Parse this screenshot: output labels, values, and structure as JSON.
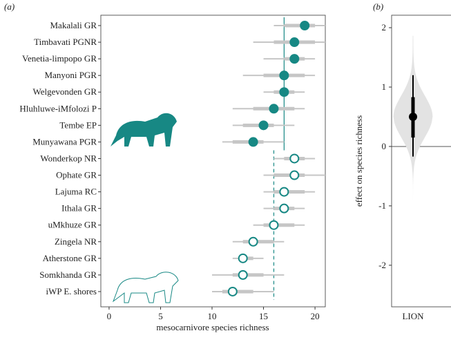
{
  "chart_data": [
    {
      "type": "forest",
      "panel_label": "(a)",
      "x_label": "mesocarnivore species richness",
      "categories": [
        "Makalali GR",
        "Timbavati PGNR",
        "Venetia-limpopo GR",
        "Manyoni PGR",
        "Welgevonden GR",
        "Hluhluwe-iMfolozi P",
        "Tembe EP",
        "Munyawana PGR",
        "Wonderkop NR",
        "Ophate GR",
        "Lajuma RC",
        "Ithala GR",
        "uMkhuze GR",
        "Zingela NR",
        "Atherstone GR",
        "Somkhanda GR",
        "iWP E. shores"
      ],
      "values": [
        19,
        18,
        18,
        17,
        17,
        16,
        15,
        14,
        18,
        18,
        17,
        17,
        16,
        14,
        13,
        13,
        12
      ],
      "intervals_50": [
        [
          17,
          20
        ],
        [
          16,
          20
        ],
        [
          17,
          19
        ],
        [
          15,
          19
        ],
        [
          16,
          18
        ],
        [
          14,
          18
        ],
        [
          13,
          16
        ],
        [
          12,
          15
        ],
        [
          17,
          19
        ],
        [
          16,
          19
        ],
        [
          16,
          19
        ],
        [
          16,
          18
        ],
        [
          15,
          18
        ],
        [
          13,
          16
        ],
        [
          13,
          14
        ],
        [
          12,
          15
        ],
        [
          11,
          14
        ]
      ],
      "intervals_95": [
        [
          16,
          21
        ],
        [
          14,
          21
        ],
        [
          15,
          20
        ],
        [
          13,
          20
        ],
        [
          15,
          19
        ],
        [
          12,
          19
        ],
        [
          12,
          18
        ],
        [
          11,
          17
        ],
        [
          16,
          20
        ],
        [
          15,
          21
        ],
        [
          15,
          20
        ],
        [
          15,
          19
        ],
        [
          14,
          19
        ],
        [
          12,
          17
        ],
        [
          12,
          15
        ],
        [
          10,
          17
        ],
        [
          10,
          16
        ]
      ],
      "groups": [
        {
          "start": 0,
          "end": 7,
          "filled": true,
          "mean": 17,
          "dashed": false
        },
        {
          "start": 8,
          "end": 16,
          "filled": false,
          "mean": 16,
          "dashed": true
        }
      ],
      "color": "#178884",
      "interval_color": "#c6c6c6",
      "xlim": [
        -0.8,
        21.0
      ],
      "xticks": [
        0,
        5,
        10,
        15,
        20
      ]
    },
    {
      "type": "violin",
      "panel_label": "(b)",
      "y_label": "effect on species richness",
      "categories": [
        "LION"
      ],
      "values": [
        0.5
      ],
      "intervals_50": [
        [
          0.15,
          0.83
        ]
      ],
      "intervals_95": [
        [
          -0.17,
          1.2
        ]
      ],
      "color": "#000000",
      "violin_color": "#e3e3e3",
      "ylim": [
        -2.7,
        2.21
      ],
      "yticks": [
        -2,
        -1,
        0,
        1,
        2
      ],
      "zero_line": true
    }
  ]
}
